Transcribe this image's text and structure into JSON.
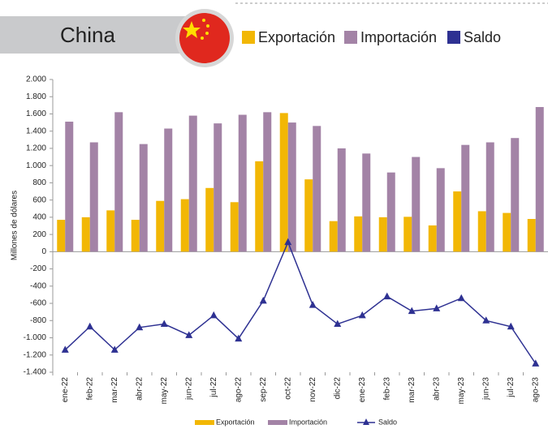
{
  "header": {
    "title": "China"
  },
  "chart_data": {
    "type": "bar_line",
    "y_axis_label": "Millones de dólares",
    "categories": [
      "ene-22",
      "feb-22",
      "mar-22",
      "abr-22",
      "may-22",
      "jun-22",
      "jul-22",
      "ago-22",
      "sep-22",
      "oct-22",
      "nov-22",
      "dic-22",
      "ene-23",
      "feb-23",
      "mar-23",
      "abr-23",
      "may-23",
      "jun-23",
      "jul-23",
      "ago-23"
    ],
    "series": [
      {
        "name": "Exportación",
        "color": "#f2b705",
        "kind": "bar",
        "values": [
          370,
          400,
          480,
          370,
          590,
          610,
          740,
          575,
          1050,
          1610,
          840,
          355,
          410,
          400,
          405,
          305,
          700,
          470,
          450,
          380
        ]
      },
      {
        "name": "Importación",
        "color": "#a383a6",
        "kind": "bar",
        "values": [
          1510,
          1270,
          1620,
          1250,
          1430,
          1580,
          1490,
          1590,
          1620,
          1500,
          1460,
          1200,
          1140,
          920,
          1100,
          970,
          1240,
          1270,
          1320,
          1680
        ]
      },
      {
        "name": "Saldo",
        "color": "#2e3192",
        "kind": "line",
        "values": [
          -1140,
          -870,
          -1140,
          -880,
          -840,
          -970,
          -740,
          -1010,
          -570,
          110,
          -620,
          -840,
          -740,
          -520,
          -690,
          -660,
          -540,
          -800,
          -870,
          -1300
        ]
      }
    ],
    "ylim": [
      -1400,
      2000
    ],
    "yticks": [
      {
        "value": 2000,
        "label": "2.000"
      },
      {
        "value": 1800,
        "label": "1.800"
      },
      {
        "value": 1600,
        "label": "1.600"
      },
      {
        "value": 1400,
        "label": "1.400"
      },
      {
        "value": 1200,
        "label": "1.200"
      },
      {
        "value": 1000,
        "label": "1.000"
      },
      800,
      600,
      400,
      200,
      0,
      -200,
      -400,
      -600,
      -800,
      {
        "value": -1000,
        "label": "-1.000"
      },
      {
        "value": -1200,
        "label": "-1.200"
      },
      {
        "value": -1400,
        "label": "-1.400"
      }
    ],
    "grid": false
  }
}
